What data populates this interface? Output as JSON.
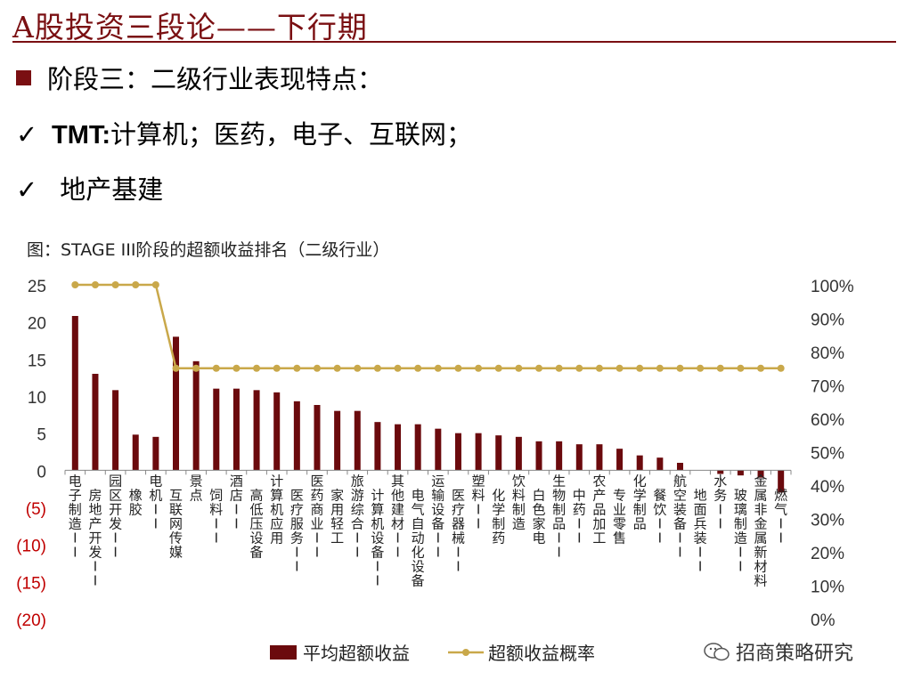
{
  "header": {
    "title": "A股投资三段论——下行期",
    "bullet1": "阶段三：二级行业表现特点：",
    "bullet2_check": "✓",
    "bullet2_bold": "TMT:",
    "bullet2_rest": "计算机；医药，电子、互联网；",
    "bullet3_check": "✓",
    "bullet3": " 地产基建"
  },
  "watermark": {
    "text": "招商策略研究",
    "icon": "wechat-icon"
  },
  "colors": {
    "brand": "#7a0f12",
    "bar": "#6b0a0d",
    "line": "#c9a84a",
    "axis_neg": "#c00000"
  },
  "chart_data": {
    "type": "bar",
    "title": "图：STAGE III阶段的超额收益排名（二级行业）",
    "categories": [
      "电子制造II",
      "房地产开发II",
      "园区开发II",
      "橡胶",
      "电机II",
      "互联网传媒",
      "景点",
      "饲料II",
      "酒店II",
      "高低压设备",
      "计算机应用",
      "医疗服务II",
      "医药商业II",
      "家用轻工",
      "旅游综合II",
      "计算机设备II",
      "其他建材II",
      "电气自动化设备",
      "运输设备II",
      "医疗器械II",
      "塑料II",
      "化学制药",
      "饮料制造",
      "白色家电",
      "生物制品II",
      "中药II",
      "农产品加工",
      "专业零售",
      "化学制品",
      "餐饮II",
      "航空装备II",
      "地面兵装II",
      "水务II",
      "玻璃制造II",
      "金属非金属新材料",
      "燃气II"
    ],
    "series": [
      {
        "name": "平均超额收益",
        "type": "bar",
        "axis": "left",
        "values": [
          20.8,
          13.0,
          10.8,
          4.8,
          4.5,
          18.0,
          14.7,
          11.0,
          11.0,
          10.8,
          10.5,
          9.3,
          8.8,
          8.0,
          8.0,
          6.5,
          6.2,
          6.2,
          5.6,
          5.0,
          5.0,
          4.7,
          4.5,
          3.9,
          3.9,
          3.5,
          3.5,
          2.9,
          2.0,
          1.7,
          1.0,
          0.0,
          -0.5,
          -0.7,
          -1.0,
          -3.0
        ]
      },
      {
        "name": "超额收益概率",
        "type": "line",
        "axis": "right",
        "values": [
          1.0,
          1.0,
          1.0,
          1.0,
          1.0,
          0.75,
          0.75,
          0.75,
          0.75,
          0.75,
          0.75,
          0.75,
          0.75,
          0.75,
          0.75,
          0.75,
          0.75,
          0.75,
          0.75,
          0.75,
          0.75,
          0.75,
          0.75,
          0.75,
          0.75,
          0.75,
          0.75,
          0.75,
          0.75,
          0.75,
          0.75,
          0.75,
          0.75,
          0.75,
          0.75,
          0.75
        ]
      }
    ],
    "y_left": {
      "range": [
        -20,
        25
      ],
      "ticks": [
        "25",
        "20",
        "15",
        "10",
        "5",
        "0",
        "(5)",
        "(10)",
        "(15)",
        "(20)"
      ],
      "tick_values": [
        25,
        20,
        15,
        10,
        5,
        0,
        -5,
        -10,
        -15,
        -20
      ]
    },
    "y_right": {
      "range": [
        0,
        1
      ],
      "ticks": [
        "100%",
        "90%",
        "80%",
        "70%",
        "60%",
        "50%",
        "40%",
        "30%",
        "20%",
        "10%",
        "0%"
      ],
      "tick_values": [
        1,
        0.9,
        0.8,
        0.7,
        0.6,
        0.5,
        0.4,
        0.3,
        0.2,
        0.1,
        0
      ]
    },
    "grid": false,
    "legend_position": "bottom"
  }
}
